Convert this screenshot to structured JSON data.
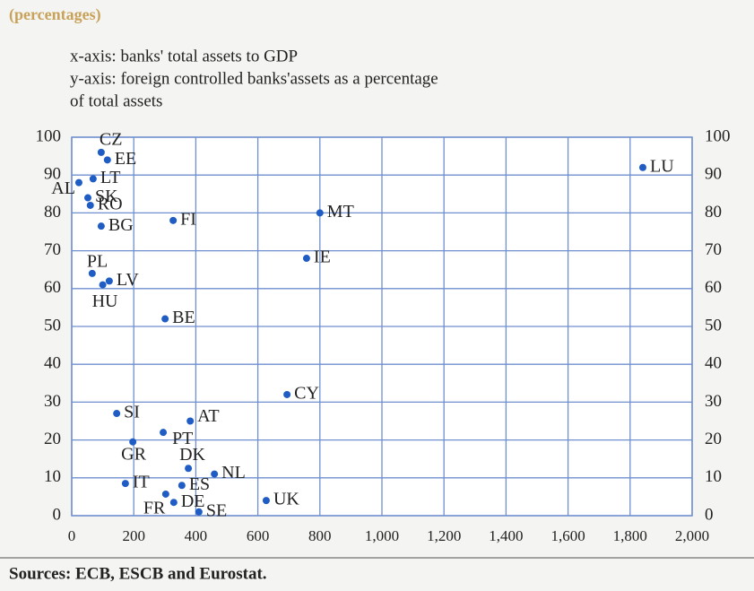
{
  "chart_data": {
    "type": "scatter",
    "subtitle": "(percentages)",
    "notes": [
      "x-axis: banks' total assets to GDP",
      "y-axis: foreign controlled banks'assets as a percentage",
      "of total assets"
    ],
    "source": "Sources: ECB, ESCB and Eurostat.",
    "labels": [
      "CZ",
      "EE",
      "LT",
      "AL",
      "SK",
      "RO",
      "BG",
      "FI",
      "MT",
      "LU",
      "IE",
      "PL",
      "LV",
      "HU",
      "BE",
      "CY",
      "SI",
      "AT",
      "PT",
      "GR",
      "DK",
      "NL",
      "IT",
      "ES",
      "FR",
      "DE",
      "SE",
      "UK"
    ],
    "x": [
      95,
      115,
      69,
      23,
      52,
      60,
      95,
      327,
      800,
      1841,
      757,
      66,
      121,
      100,
      301,
      694,
      145,
      382,
      295,
      197,
      376,
      460,
      173,
      355,
      303,
      329,
      410,
      627
    ],
    "values": [
      96,
      94,
      89,
      88,
      84,
      82,
      76.5,
      78,
      80,
      92,
      68,
      64,
      62,
      61,
      52,
      32,
      27,
      25,
      22,
      19.5,
      12.5,
      11,
      8.5,
      8,
      5.7,
      3.5,
      1,
      4
    ],
    "color": "#1f5cc4",
    "xlim": [
      0,
      2000
    ],
    "xticks": [
      0,
      200,
      400,
      600,
      800,
      {
        "value": 1000,
        "label": "1,000"
      },
      {
        "value": 1200,
        "label": "1,200"
      },
      {
        "value": 1400,
        "label": "1,400"
      },
      {
        "value": 1600,
        "label": "1,600"
      },
      {
        "value": 1800,
        "label": "1,800"
      },
      {
        "value": 2000,
        "label": "2,000"
      }
    ],
    "ylim": [
      0,
      100
    ],
    "yticks": [
      0,
      10,
      20,
      30,
      40,
      50,
      60,
      70,
      80,
      90,
      100
    ],
    "grid": true
  }
}
